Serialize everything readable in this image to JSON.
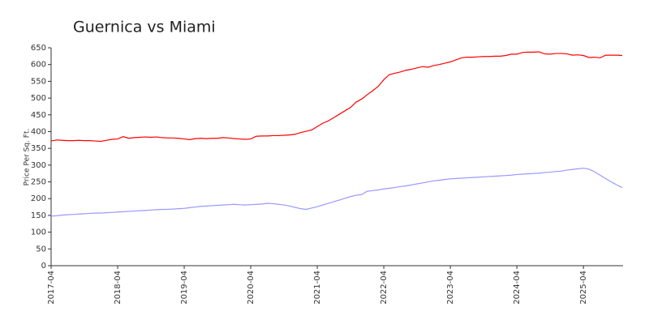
{
  "chart_data": {
    "type": "line",
    "title": "Guernica vs Miami",
    "y_label": "Price Per Sq. Ft.",
    "x": [
      "2017-04",
      "2017-05",
      "2017-06",
      "2017-07",
      "2017-08",
      "2017-09",
      "2017-10",
      "2017-11",
      "2017-12",
      "2018-01",
      "2018-02",
      "2018-03",
      "2018-04",
      "2018-05",
      "2018-06",
      "2018-07",
      "2018-08",
      "2018-09",
      "2018-10",
      "2018-11",
      "2018-12",
      "2019-01",
      "2019-02",
      "2019-03",
      "2019-04",
      "2019-05",
      "2019-06",
      "2019-07",
      "2019-08",
      "2019-09",
      "2019-10",
      "2019-11",
      "2019-12",
      "2020-01",
      "2020-02",
      "2020-03",
      "2020-04",
      "2020-05",
      "2020-06",
      "2020-07",
      "2020-08",
      "2020-09",
      "2020-10",
      "2020-11",
      "2020-12",
      "2021-01",
      "2021-02",
      "2021-03",
      "2021-04",
      "2021-05",
      "2021-06",
      "2021-07",
      "2021-08",
      "2021-09",
      "2021-10",
      "2021-11",
      "2021-12",
      "2022-01",
      "2022-02",
      "2022-03",
      "2022-04",
      "2022-05",
      "2022-06",
      "2022-07",
      "2022-08",
      "2022-09",
      "2022-10",
      "2022-11",
      "2022-12",
      "2023-01",
      "2023-02",
      "2023-03",
      "2023-04",
      "2023-05",
      "2023-06",
      "2023-07",
      "2023-08",
      "2023-09",
      "2023-10",
      "2023-11",
      "2023-12",
      "2024-01",
      "2024-02",
      "2024-03",
      "2024-04",
      "2024-05",
      "2024-06",
      "2024-07",
      "2024-08",
      "2024-09",
      "2024-10",
      "2024-11",
      "2024-12",
      "2025-01",
      "2025-02",
      "2025-03",
      "2025-04",
      "2025-05",
      "2025-06",
      "2025-07",
      "2025-08",
      "2025-09",
      "2025-10",
      "2025-11"
    ],
    "series": [
      {
        "color": "#ff0000",
        "values": [
          372,
          375,
          374,
          373,
          373,
          374,
          373,
          373,
          372,
          371,
          374,
          377,
          378,
          385,
          380,
          382,
          383,
          384,
          383,
          384,
          382,
          381,
          381,
          380,
          378,
          376,
          379,
          380,
          379,
          380,
          380,
          382,
          381,
          379,
          378,
          377,
          378,
          386,
          387,
          387,
          388,
          388,
          389,
          390,
          392,
          397,
          401,
          405,
          415,
          425,
          432,
          442,
          452,
          462,
          472,
          488,
          497,
          510,
          522,
          535,
          555,
          570,
          574,
          578,
          583,
          586,
          590,
          594,
          592,
          597,
          600,
          604,
          608,
          614,
          620,
          622,
          622,
          623,
          624,
          624,
          625,
          625,
          627,
          631,
          631,
          636,
          637,
          637,
          638,
          632,
          631,
          633,
          633,
          632,
          628,
          629,
          627,
          621,
          622,
          620,
          628,
          628,
          628,
          627
        ]
      },
      {
        "color": "#9999ff",
        "values": [
          148,
          149,
          151,
          152,
          153,
          154,
          155,
          156,
          157,
          157,
          158,
          159,
          160,
          161,
          162,
          163,
          164,
          165,
          166,
          167,
          168,
          168,
          169,
          170,
          171,
          173,
          175,
          177,
          178,
          179,
          180,
          181,
          182,
          183,
          182,
          181,
          182,
          183,
          184,
          186,
          185,
          183,
          181,
          178,
          174,
          170,
          168,
          172,
          176,
          181,
          186,
          191,
          196,
          201,
          206,
          210,
          212,
          222,
          224,
          226,
          229,
          231,
          233,
          236,
          238,
          241,
          244,
          247,
          250,
          253,
          255,
          257,
          259,
          260,
          261,
          262,
          263,
          264,
          265,
          266,
          267,
          268,
          269,
          270,
          272,
          273,
          274,
          275,
          276,
          278,
          279,
          281,
          282,
          285,
          287,
          289,
          291,
          288,
          280,
          270,
          260,
          250,
          241,
          233
        ]
      }
    ],
    "xticks": [
      "2017-04",
      "2018-04",
      "2019-04",
      "2020-04",
      "2021-04",
      "2022-04",
      "2023-04",
      "2024-04",
      "2025-04"
    ],
    "ylim": [
      0,
      650
    ],
    "yticks": [
      0,
      50,
      100,
      150,
      200,
      250,
      300,
      350,
      400,
      450,
      500,
      550,
      600,
      650
    ],
    "grid": false
  }
}
